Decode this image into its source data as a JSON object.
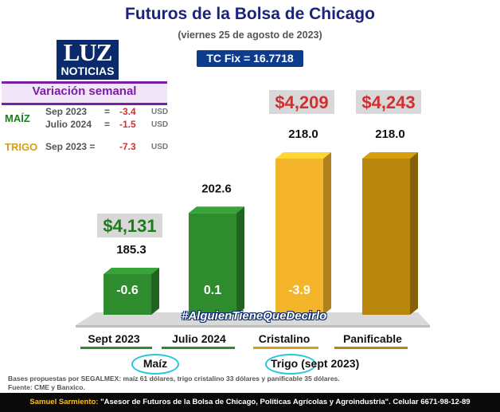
{
  "header": {
    "title": "Futuros de la Bolsa de Chicago",
    "subtitle": "(viernes 25 de agosto de 2023)",
    "tc_fix": "TC Fix = 16.7718"
  },
  "logo": {
    "big": "LUZ",
    "small": "NOTICIAS"
  },
  "weekly": {
    "title": "Variación semanal",
    "maiz_label": "MAÍZ",
    "trigo_label": "TRIGO",
    "rows": [
      {
        "period": "Sep 2023",
        "eq": "=",
        "value": "-3.4",
        "unit": "USD"
      },
      {
        "period": "Julio 2024",
        "eq": "=",
        "value": "-1.5",
        "unit": "USD"
      },
      {
        "period": "Sep 2023 =",
        "eq": "",
        "value": "-7.3",
        "unit": "USD"
      }
    ]
  },
  "chart_data": {
    "type": "bar",
    "categories": [
      "Sept 2023",
      "Julio 2024",
      "Cristalino",
      "Panificable"
    ],
    "values": [
      185.3,
      202.6,
      218.0,
      218.0
    ],
    "value_labels": [
      "185.3",
      "202.6",
      "218.0",
      "218.0"
    ],
    "weekly_change": [
      "-0.6",
      "0.1",
      "-3.9",
      ""
    ],
    "price_mxn": [
      "$4,131",
      "",
      "$4,209",
      "$4,243"
    ],
    "colors": [
      "#2e8b2e",
      "#2e8b2e",
      "#f5b52a",
      "#b8860b"
    ],
    "groups": [
      {
        "label": "Maíz",
        "color": "#2e8b2e"
      },
      {
        "label": "Trigo (sept 2023)",
        "color": "#d4a017"
      }
    ]
  },
  "hashtag": "#AlguienTieneQueDecirlo",
  "footer": {
    "line1": "Bases propuestas por SEGALMEX: maíz 61 dólares, trigo cristalino 33 dólares y panificable 35 dólares.",
    "line2": "Fuente: CME y Banxico.",
    "author_name": "Samuel Sarmiento:",
    "author_desc": " \"Asesor de Futuros de la Bolsa de Chicago, Políticas Agrícolas y Agroindustria\". Celular 6671-98-12-89"
  }
}
